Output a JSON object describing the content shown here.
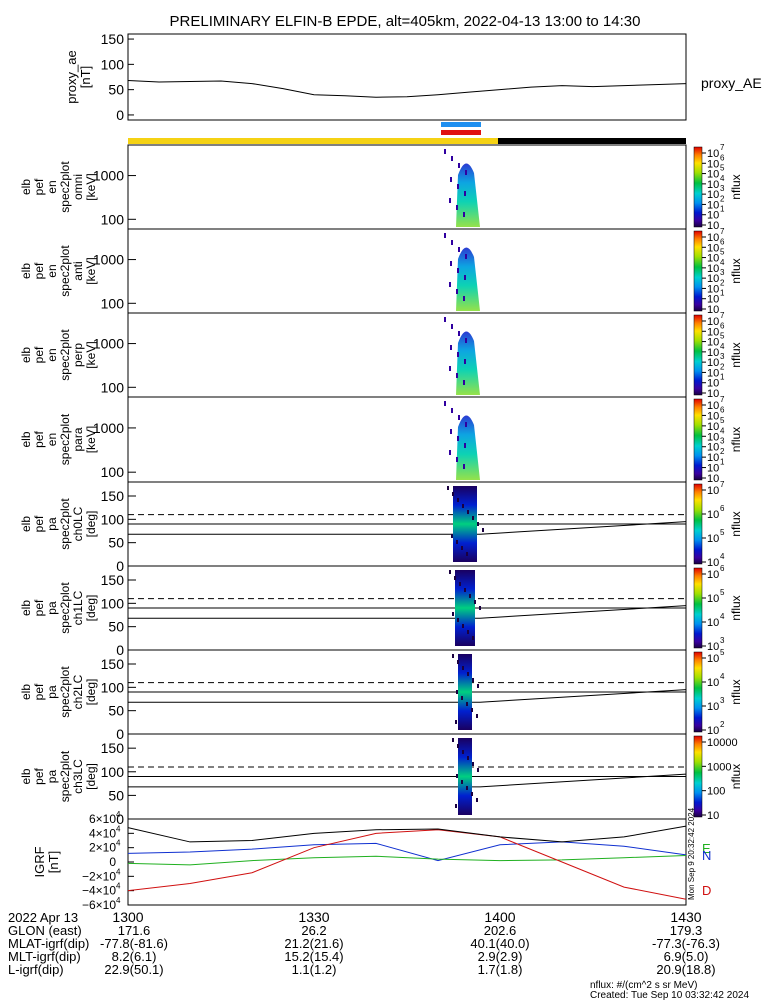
{
  "title": "PRELIMINARY ELFIN-B EPDE, alt=405km, 2022-04-13 13:00 to 14:30",
  "colors": {
    "yellow": "#f5d214",
    "black": "#000000",
    "bar_blue": "#1e8ff0",
    "bar_red": "#e01010",
    "bx": "#1030d0",
    "by": "#20b020",
    "bz": "#d01010"
  },
  "chart_data": [
    {
      "type": "line",
      "panel": "proxy_ae",
      "ylabel": [
        "proxy_ae",
        "[nT]"
      ],
      "legend": "proxy_AE",
      "yticks": [
        "150",
        "100",
        "50",
        "0"
      ],
      "ylim": [
        -10,
        160
      ],
      "x_minutes": [
        0,
        5,
        10,
        15,
        20,
        25,
        30,
        35,
        40,
        45,
        50,
        55,
        60,
        65,
        70,
        75,
        80,
        85,
        90
      ],
      "values": [
        68,
        65,
        66,
        67,
        62,
        52,
        40,
        38,
        35,
        36,
        40,
        45,
        50,
        55,
        58,
        56,
        58,
        60,
        62
      ]
    },
    {
      "type": "heatmap",
      "panel": "omni",
      "ylabel": [
        "elb",
        "pef",
        "en",
        "spec2plot",
        "omni",
        "[keV]"
      ],
      "yticks": [
        "1000",
        "100"
      ],
      "colorbar_label": "nflux",
      "colorbar_ticks": [
        "10",
        "10",
        "10",
        "10",
        "10",
        "10",
        "10",
        "10"
      ],
      "colorbar_exps": [
        "7",
        "6",
        "5",
        "4",
        "3",
        "2",
        "1",
        ""
      ]
    },
    {
      "type": "heatmap",
      "panel": "anti",
      "ylabel": [
        "elb",
        "pef",
        "en",
        "spec2plot",
        "anti",
        "[keV]"
      ],
      "yticks": [
        "1000",
        "100"
      ],
      "colorbar_label": "nflux",
      "colorbar_ticks": [
        "10",
        "10",
        "10",
        "10",
        "10",
        "10",
        "10",
        "10"
      ],
      "colorbar_exps": [
        "7",
        "6",
        "5",
        "4",
        "3",
        "2",
        "1",
        ""
      ]
    },
    {
      "type": "heatmap",
      "panel": "perp",
      "ylabel": [
        "elb",
        "pef",
        "en",
        "spec2plot",
        "perp",
        "[keV]"
      ],
      "yticks": [
        "1000",
        "100"
      ],
      "colorbar_label": "nflux",
      "colorbar_ticks": [
        "10",
        "10",
        "10",
        "10",
        "10",
        "10",
        "10",
        "10"
      ],
      "colorbar_exps": [
        "7",
        "6",
        "5",
        "4",
        "3",
        "2",
        "1",
        ""
      ]
    },
    {
      "type": "heatmap",
      "panel": "para",
      "ylabel": [
        "elb",
        "pef",
        "en",
        "spec2plot",
        "para",
        "[keV]"
      ],
      "yticks": [
        "1000",
        "100"
      ],
      "colorbar_label": "nflux",
      "colorbar_ticks": [
        "10",
        "10",
        "10",
        "10",
        "10",
        "10",
        "10",
        "10"
      ],
      "colorbar_exps": [
        "7",
        "6",
        "5",
        "4",
        "3",
        "2",
        "1",
        ""
      ]
    },
    {
      "type": "heatmap",
      "panel": "ch0LC",
      "ylabel": [
        "elb",
        "pef",
        "pa",
        "spec2plot",
        "ch0LC",
        "[deg]"
      ],
      "yticks": [
        "150",
        "100",
        "50",
        "0"
      ],
      "colorbar_label": "nflux",
      "colorbar_ticks": [
        "10",
        "10",
        "10",
        "10"
      ],
      "colorbar_exps": [
        "7",
        "6",
        "5",
        "4"
      ]
    },
    {
      "type": "heatmap",
      "panel": "ch1LC",
      "ylabel": [
        "elb",
        "pef",
        "pa",
        "spec2plot",
        "ch1LC",
        "[deg]"
      ],
      "yticks": [
        "150",
        "100",
        "50",
        "0"
      ],
      "colorbar_label": "nflux",
      "colorbar_ticks": [
        "10",
        "10",
        "10",
        "10"
      ],
      "colorbar_exps": [
        "6",
        "5",
        "4",
        "3"
      ]
    },
    {
      "type": "heatmap",
      "panel": "ch2LC",
      "ylabel": [
        "elb",
        "pef",
        "pa",
        "spec2plot",
        "ch2LC",
        "[deg]"
      ],
      "yticks": [
        "150",
        "100",
        "50",
        "0"
      ],
      "colorbar_label": "nflux",
      "colorbar_ticks": [
        "10",
        "10",
        "10",
        "10"
      ],
      "colorbar_exps": [
        "5",
        "4",
        "3",
        "2"
      ]
    },
    {
      "type": "heatmap",
      "panel": "ch3LC",
      "ylabel": [
        "elb",
        "pef",
        "pa",
        "spec2plot",
        "ch3LC",
        "[deg]"
      ],
      "yticks": [
        "150",
        "100",
        "50",
        "0"
      ],
      "colorbar_label": "nflux",
      "colorbar_ticks": [
        "10000",
        "1000",
        "100",
        "10"
      ],
      "colorbar_exps": [
        "",
        "",
        "",
        ""
      ]
    },
    {
      "type": "line",
      "panel": "igrf",
      "ylabel": [
        "IGRF",
        "[nT]"
      ],
      "yticks": [
        "6×10",
        "4×10",
        "2×10",
        "0",
        "−2×10",
        "−4×10",
        "−6×10"
      ],
      "ytick_exp": "4",
      "ylim": [
        -60000,
        60000
      ],
      "legend": [
        "E",
        "N",
        "D"
      ],
      "x_minutes": [
        0,
        10,
        20,
        30,
        40,
        50,
        60,
        70,
        80,
        90
      ],
      "series": [
        {
          "name": "N",
          "values": [
            12000,
            14000,
            18000,
            24000,
            26000,
            2000,
            24000,
            28000,
            22000,
            10000
          ]
        },
        {
          "name": "E",
          "values": [
            -2000,
            -4000,
            2000,
            6000,
            8000,
            4000,
            2000,
            3000,
            6000,
            9000
          ]
        },
        {
          "name": "D",
          "values": [
            -40000,
            -30000,
            -15000,
            20000,
            40000,
            45000,
            35000,
            0,
            -35000,
            -52000
          ]
        },
        {
          "name": "",
          "values": [
            48000,
            28000,
            30000,
            40000,
            45000,
            46000,
            35000,
            28000,
            35000,
            50000
          ]
        }
      ]
    }
  ],
  "time_labels": [
    "1300",
    "1330",
    "1400",
    "1430"
  ],
  "footer": {
    "row_labels": [
      "2022 Apr 13",
      "GLON (east)",
      "MLAT-igrf(dip)",
      "MLT-igrf(dip)",
      "L-igrf(dip)"
    ],
    "col1": [
      "",
      "171.6",
      "-77.8(-81.6)",
      "8.2(6.1)",
      "22.9(50.1)"
    ],
    "col2": [
      "",
      "26.2",
      "21.2(21.6)",
      "15.2(15.4)",
      "1.1(1.2)"
    ],
    "col3": [
      "",
      "202.6",
      "40.1(40.0)",
      "2.9(2.9)",
      "1.7(1.8)"
    ],
    "col4": [
      "",
      "179.3",
      "-77.3(-76.3)",
      "6.9(5.0)",
      "20.9(18.8)"
    ],
    "units_note": "nflux: #/(cm^2 s sr MeV)",
    "created": "Created: Tue Sep 10 03:32:42 2024",
    "side_stamp": "Mon Sep 9 20:32:42 2024"
  }
}
